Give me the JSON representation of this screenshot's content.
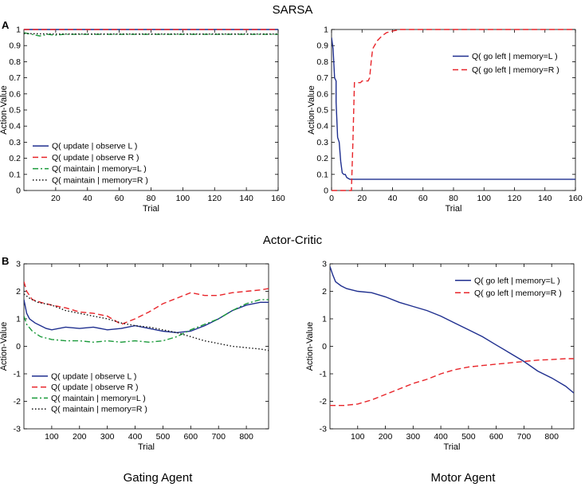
{
  "figure": {
    "sections": [
      {
        "panel_letter": "A",
        "title": "SARSA"
      },
      {
        "panel_letter": "B",
        "title": "Actor-Critic"
      }
    ],
    "column_labels": [
      "Gating Agent",
      "Motor Agent"
    ]
  },
  "chart_data": [
    {
      "id": "sarsa-gating",
      "type": "line",
      "xlabel": "Trial",
      "ylabel": "Action-Value",
      "xlim": [
        0,
        160
      ],
      "ylim": [
        0,
        1
      ],
      "xticks": [
        20,
        40,
        60,
        80,
        100,
        120,
        140,
        160
      ],
      "yticks": [
        0,
        0.1,
        0.2,
        0.3,
        0.4,
        0.5,
        0.6,
        0.7,
        0.8,
        0.9,
        1
      ],
      "legend_position": "bottom-left",
      "series": [
        {
          "name": "Q( update | observe L )",
          "color": "#1f2f8f",
          "dash": "solid",
          "x": [
            0,
            160
          ],
          "y": [
            1.0,
            1.0
          ]
        },
        {
          "name": "Q( update | observe R )",
          "color": "#e8252a",
          "dash": "dashed",
          "x": [
            0,
            160
          ],
          "y": [
            1.0,
            1.0
          ]
        },
        {
          "name": "Q( maintain | memory=L )",
          "color": "#1a9a3a",
          "dash": "dashdot",
          "x": [
            0,
            5,
            10,
            15,
            20,
            25,
            30,
            40,
            50,
            60,
            70,
            80,
            90,
            100,
            110,
            120,
            130,
            140,
            150,
            160
          ],
          "y": [
            0.98,
            0.97,
            0.96,
            0.97,
            0.965,
            0.97,
            0.97,
            0.97,
            0.97,
            0.97,
            0.97,
            0.97,
            0.97,
            0.97,
            0.97,
            0.97,
            0.97,
            0.97,
            0.97,
            0.97
          ]
        },
        {
          "name": "Q( maintain | memory=R )",
          "color": "#111111",
          "dash": "dotted",
          "x": [
            0,
            20,
            40,
            60,
            80,
            100,
            120,
            140,
            160
          ],
          "y": [
            0.975,
            0.972,
            0.972,
            0.972,
            0.972,
            0.972,
            0.972,
            0.972,
            0.972
          ]
        }
      ]
    },
    {
      "id": "sarsa-motor",
      "type": "line",
      "xlabel": "Trial",
      "ylabel": "Action-Value",
      "xlim": [
        0,
        160
      ],
      "ylim": [
        0,
        1
      ],
      "xticks": [
        0,
        20,
        40,
        60,
        80,
        100,
        120,
        140,
        160
      ],
      "yticks": [
        0,
        0.1,
        0.2,
        0.3,
        0.4,
        0.5,
        0.6,
        0.7,
        0.8,
        0.9,
        1
      ],
      "legend_position": "top-right",
      "series": [
        {
          "name": "Q( go left | memory=L )",
          "color": "#1f2f8f",
          "dash": "solid",
          "x": [
            0,
            1,
            2,
            3,
            3,
            4,
            5,
            6,
            7,
            8,
            9,
            10,
            12,
            14,
            160
          ],
          "y": [
            0.95,
            0.88,
            0.7,
            0.68,
            0.55,
            0.33,
            0.3,
            0.18,
            0.11,
            0.1,
            0.1,
            0.08,
            0.07,
            0.07,
            0.07
          ]
        },
        {
          "name": "Q( go left | memory=R )",
          "color": "#e8252a",
          "dash": "dashed",
          "x": [
            0,
            13,
            14,
            15,
            16,
            19,
            20,
            24,
            25,
            26,
            27,
            30,
            33,
            36,
            40,
            45,
            50,
            160
          ],
          "y": [
            0,
            0,
            0.3,
            0.67,
            0.67,
            0.67,
            0.68,
            0.68,
            0.7,
            0.8,
            0.88,
            0.93,
            0.96,
            0.98,
            0.99,
            1.0,
            1.0,
            1.0
          ]
        }
      ]
    },
    {
      "id": "ac-gating",
      "type": "line",
      "xlabel": "Trial",
      "ylabel": "Action-Value",
      "xlim": [
        0,
        880
      ],
      "ylim": [
        -3,
        3
      ],
      "xticks": [
        100,
        200,
        300,
        400,
        500,
        600,
        700,
        800
      ],
      "yticks": [
        -3,
        -2,
        -1,
        0,
        1,
        2,
        3
      ],
      "legend_position": "bottom-left",
      "series": [
        {
          "name": "Q( update | observe L )",
          "color": "#1f2f8f",
          "dash": "solid",
          "x": [
            0,
            10,
            20,
            40,
            60,
            80,
            100,
            150,
            200,
            250,
            300,
            350,
            400,
            450,
            500,
            550,
            600,
            650,
            700,
            750,
            800,
            850,
            880
          ],
          "y": [
            1.7,
            1.2,
            1.0,
            0.85,
            0.75,
            0.65,
            0.6,
            0.7,
            0.65,
            0.7,
            0.6,
            0.65,
            0.75,
            0.65,
            0.55,
            0.5,
            0.55,
            0.75,
            1.0,
            1.3,
            1.5,
            1.6,
            1.6
          ]
        },
        {
          "name": "Q( update | observe R )",
          "color": "#e8252a",
          "dash": "dashed",
          "x": [
            0,
            10,
            30,
            60,
            100,
            150,
            200,
            250,
            300,
            350,
            400,
            450,
            500,
            550,
            600,
            650,
            700,
            750,
            800,
            850,
            880
          ],
          "y": [
            2.35,
            2.0,
            1.7,
            1.6,
            1.5,
            1.4,
            1.25,
            1.2,
            1.1,
            0.8,
            1.0,
            1.25,
            1.55,
            1.75,
            1.95,
            1.85,
            1.85,
            1.95,
            2.0,
            2.05,
            2.1
          ]
        },
        {
          "name": "Q( maintain | memory=L )",
          "color": "#1a9a3a",
          "dash": "dashdot",
          "x": [
            0,
            10,
            30,
            60,
            100,
            150,
            200,
            250,
            300,
            350,
            400,
            450,
            500,
            550,
            600,
            650,
            700,
            750,
            800,
            850,
            880
          ],
          "y": [
            1.1,
            0.8,
            0.55,
            0.35,
            0.25,
            0.2,
            0.2,
            0.15,
            0.2,
            0.15,
            0.2,
            0.15,
            0.2,
            0.35,
            0.6,
            0.8,
            1.0,
            1.3,
            1.55,
            1.7,
            1.7
          ]
        },
        {
          "name": "Q( maintain | memory=R )",
          "color": "#111111",
          "dash": "dotted",
          "x": [
            0,
            20,
            50,
            100,
            150,
            200,
            250,
            300,
            350,
            400,
            450,
            500,
            550,
            600,
            650,
            700,
            750,
            800,
            850,
            880
          ],
          "y": [
            1.9,
            1.75,
            1.6,
            1.5,
            1.3,
            1.2,
            1.1,
            1.0,
            0.85,
            0.75,
            0.7,
            0.6,
            0.5,
            0.35,
            0.2,
            0.1,
            0.0,
            -0.05,
            -0.1,
            -0.15
          ]
        }
      ]
    },
    {
      "id": "ac-motor",
      "type": "line",
      "xlabel": "Trial",
      "ylabel": "Action-Value",
      "xlim": [
        0,
        880
      ],
      "ylim": [
        -3,
        3
      ],
      "xticks": [
        100,
        200,
        300,
        400,
        500,
        600,
        700,
        800
      ],
      "yticks": [
        -3,
        -2,
        -1,
        0,
        1,
        2,
        3
      ],
      "legend_position": "top-right",
      "series": [
        {
          "name": "Q( go left | memory=L )",
          "color": "#1f2f8f",
          "dash": "solid",
          "x": [
            0,
            10,
            20,
            40,
            60,
            80,
            100,
            150,
            200,
            250,
            300,
            350,
            400,
            450,
            500,
            550,
            600,
            650,
            700,
            750,
            800,
            850,
            880
          ],
          "y": [
            2.9,
            2.6,
            2.35,
            2.2,
            2.1,
            2.05,
            2.0,
            1.95,
            1.8,
            1.6,
            1.45,
            1.3,
            1.1,
            0.85,
            0.6,
            0.35,
            0.05,
            -0.25,
            -0.55,
            -0.9,
            -1.15,
            -1.45,
            -1.7
          ]
        },
        {
          "name": "Q( go left | memory=R )",
          "color": "#e8252a",
          "dash": "dashed",
          "x": [
            0,
            50,
            100,
            150,
            200,
            250,
            300,
            350,
            400,
            450,
            500,
            550,
            600,
            650,
            700,
            750,
            800,
            850,
            880
          ],
          "y": [
            -2.15,
            -2.15,
            -2.1,
            -1.95,
            -1.75,
            -1.55,
            -1.35,
            -1.2,
            -1.0,
            -0.85,
            -0.75,
            -0.7,
            -0.65,
            -0.6,
            -0.55,
            -0.5,
            -0.48,
            -0.45,
            -0.45
          ]
        }
      ]
    }
  ]
}
